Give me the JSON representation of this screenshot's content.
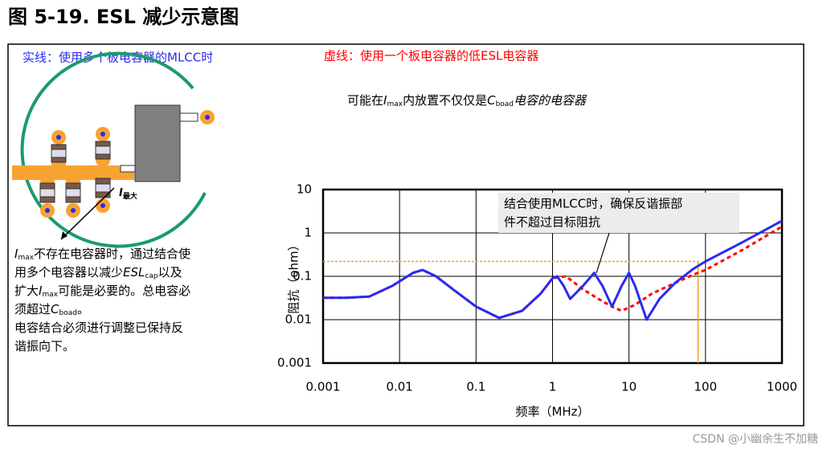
{
  "chart_data": {
    "type": "line",
    "title": "图 5-19. ESL 减少示意图",
    "xlabel": "频率（MHz）",
    "ylabel": "阻抗（ohm）",
    "xscale": "log",
    "yscale": "log",
    "grid": true,
    "xlim": [
      0.001,
      1000
    ],
    "ylim": [
      0.001,
      10
    ],
    "xticks": [
      0.001,
      0.01,
      0.1,
      1,
      10,
      100,
      1000
    ],
    "yticks": [
      0.001,
      0.01,
      0.1,
      1,
      10
    ],
    "series": [
      {
        "name": "实线：使用多个板电容器的MLCC时",
        "color": "#2a2af2",
        "style": "solid",
        "x": [
          0.001,
          0.002,
          0.004,
          0.008,
          0.015,
          0.02,
          0.03,
          0.05,
          0.1,
          0.2,
          0.4,
          0.7,
          1,
          1.15,
          1.4,
          1.7,
          2.5,
          3.5,
          4.5,
          6,
          8,
          10,
          12,
          17,
          25,
          40,
          70,
          100,
          300,
          1000
        ],
        "values": [
          0.032,
          0.032,
          0.034,
          0.06,
          0.12,
          0.14,
          0.1,
          0.05,
          0.02,
          0.011,
          0.016,
          0.04,
          0.09,
          0.1,
          0.06,
          0.03,
          0.06,
          0.12,
          0.06,
          0.02,
          0.06,
          0.12,
          0.06,
          0.01,
          0.03,
          0.07,
          0.15,
          0.22,
          0.6,
          1.9
        ]
      },
      {
        "name": "虚线：使用一个板电容器的低ESL电容器",
        "color": "#ff0000",
        "style": "dashed",
        "x": [
          0.001,
          0.002,
          0.004,
          0.008,
          0.015,
          0.02,
          0.03,
          0.05,
          0.1,
          0.2,
          0.4,
          0.7,
          1,
          1.5,
          2.5,
          4,
          6,
          8,
          12,
          20,
          40,
          70,
          100,
          300,
          1000
        ],
        "values": [
          0.032,
          0.032,
          0.034,
          0.06,
          0.12,
          0.14,
          0.1,
          0.05,
          0.02,
          0.011,
          0.016,
          0.04,
          0.09,
          0.1,
          0.05,
          0.03,
          0.02,
          0.016,
          0.022,
          0.04,
          0.07,
          0.11,
          0.14,
          0.4,
          1.4
        ]
      }
    ],
    "target_impedance": 0.22,
    "target_frequency": 80,
    "target_color": "#f0a020",
    "top_note": [
      "可能在",
      "I",
      "max",
      "内放置不仅仅是",
      "C",
      "boad",
      "电容的电容器"
    ],
    "callout": [
      "结合使用MLCC时，确保反谐振部",
      "件不超过目标阻抗"
    ],
    "diagram_label": [
      "I",
      "最大"
    ],
    "left_note": [
      [
        "I",
        "max",
        "不存在电容器时，通过结合使"
      ],
      [
        "用多个电容器以减少",
        "ESL",
        "cap",
        "以及"
      ],
      [
        "扩大",
        "I",
        "max",
        "可能是必要的。总电容必"
      ],
      [
        "须超过",
        "C",
        "boad",
        "。"
      ],
      [
        "电容结合必须进行调整已保持反"
      ],
      [
        "谐振向下。"
      ]
    ]
  },
  "watermark": "CSDN @小幽余生不加糖"
}
